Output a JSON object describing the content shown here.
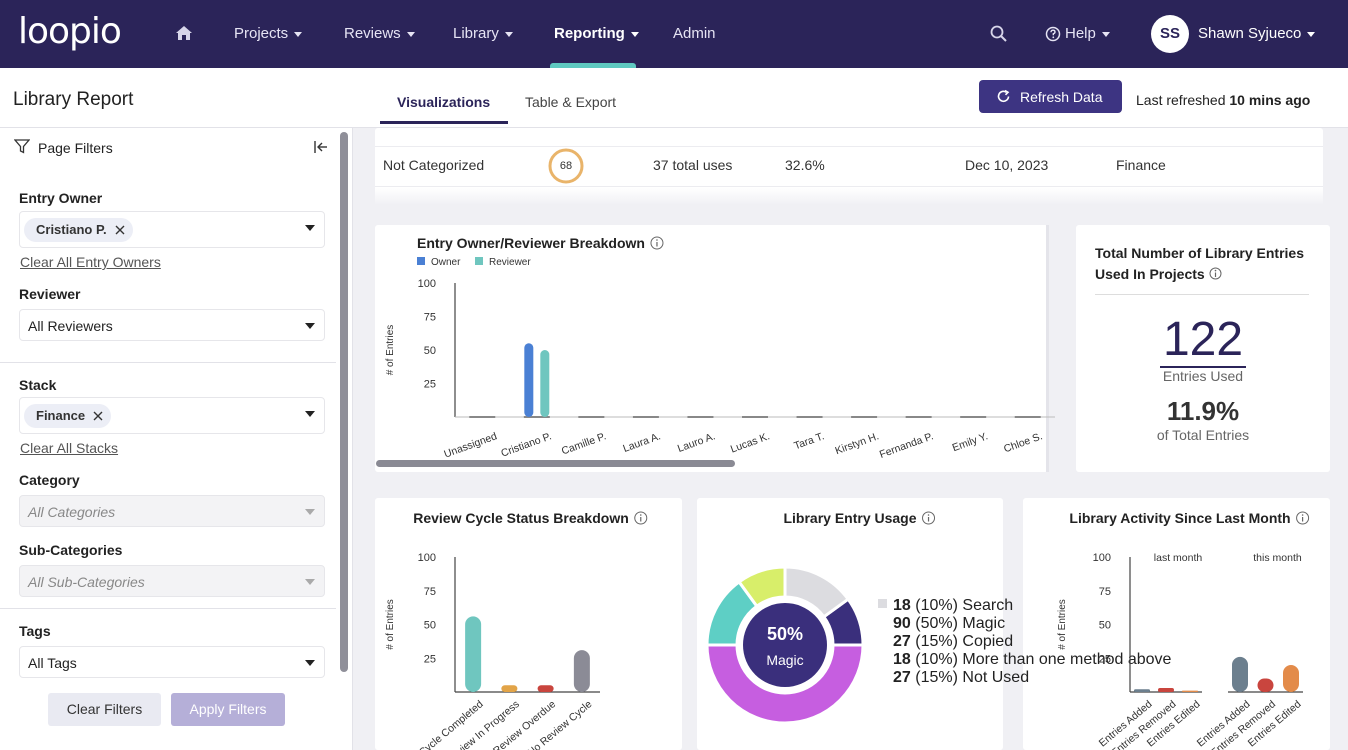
{
  "nav": {
    "logo": "loopio",
    "items": [
      "Projects",
      "Reviews",
      "Library",
      "Reporting",
      "Admin"
    ],
    "help": "Help",
    "avatar": "SS",
    "user": "Shawn Syjueco"
  },
  "header": {
    "title": "Library Report",
    "tabs": [
      "Visualizations",
      "Table & Export"
    ],
    "refresh_button": "Refresh Data",
    "last_refreshed": "Last refreshed",
    "last_refreshed_time": "10 mins ago"
  },
  "sidebar": {
    "title": "Page Filters",
    "filters": [
      {
        "label": "Entry Owner",
        "chip": "Cristiano P.",
        "clear": "Clear All Entry Owners"
      },
      {
        "label": "Reviewer",
        "select": "All Reviewers"
      },
      {
        "label": "Stack",
        "chip": "Finance",
        "clear": "Clear All Stacks"
      },
      {
        "label": "Category",
        "select": "All Categories"
      },
      {
        "label": "Sub-Categories",
        "select": "All Sub-Categories"
      },
      {
        "label": "Tags",
        "select": "All Tags"
      }
    ],
    "buttons": [
      "Clear Filters",
      "Apply Filters"
    ]
  },
  "table": {
    "row": [
      "Not Categorized",
      68,
      "37 total uses",
      "32.6%",
      "Dec 10, 2023",
      "Finance"
    ]
  },
  "summary": {
    "title": "Total Number of Library Entries Used In Projects",
    "count": 122,
    "count_caption": "Entries Used",
    "share": "11.9%",
    "share_caption": "of Total Entries"
  },
  "chart_data": [
    {
      "type": "grouped_bar",
      "title": "Entry Owner/Reviewer Breakdown",
      "y_label": "# of Entries",
      "categories": [
        "Unassigned",
        "Cristiano P.",
        "Camille P.",
        "Laura A.",
        "Lauro A.",
        "Lucas K.",
        "Tara T.",
        "Kirstyn H.",
        "Fernanda P.",
        "Emily Y.",
        "Chloe S."
      ],
      "series": [
        {
          "name": "Owner",
          "color": "#4a80d4",
          "values": [
            0,
            55,
            0,
            0,
            0,
            0,
            0,
            0,
            0,
            0,
            0
          ]
        },
        {
          "name": "Reviewer",
          "color": "#6fc6bf",
          "values": [
            0,
            50,
            0,
            0,
            0,
            0,
            0,
            0,
            0,
            0,
            0
          ]
        }
      ],
      "ylim": [
        0,
        100
      ],
      "yticks": [
        25,
        50,
        75,
        100
      ]
    },
    {
      "type": "bar",
      "title": "Review Cycle Status Breakdown",
      "y_label": "# of Entries",
      "categories": [
        "Cycle Completed",
        "Review In Progress",
        "Review Overdue",
        "No Review Cycle"
      ],
      "values": [
        56,
        5,
        5,
        31
      ],
      "colors": [
        "#6fc6bf",
        "#e2a448",
        "#c9453e",
        "#8b8b96"
      ],
      "ylim": [
        0,
        100
      ],
      "yticks": [
        25,
        50,
        75,
        100
      ]
    },
    {
      "type": "donut",
      "title": "Library Entry Usage",
      "categories": [
        "Search",
        "Magic",
        "Copied",
        "More than one method above",
        "Not Used"
      ],
      "values": [
        18,
        90,
        27,
        18,
        27
      ],
      "share_labels": [
        "(10%)",
        "(50%)",
        "(15%)",
        "(10%)",
        "(15%)"
      ],
      "colors": [
        "#3a2f7c",
        "#c65ee0",
        "#5ecfc5",
        "#d8ee6a",
        "#dcdce0"
      ],
      "center": {
        "value": 50,
        "label": "50%"
      },
      "center_caption": "Magic"
    },
    {
      "type": "grouped_panels",
      "title": "Library Activity Since Last Month",
      "y_label": "# of Entries",
      "categories": [
        "Entries Added",
        "Entries Removed",
        "Entries Edited"
      ],
      "colors": [
        "#6c7f8e",
        "#c9453e",
        "#e38b4a"
      ],
      "series": [
        {
          "name": "last month",
          "values": [
            2,
            3,
            1
          ]
        },
        {
          "name": "this month",
          "values": [
            26,
            10,
            20
          ]
        }
      ],
      "ylim": [
        0,
        100
      ],
      "yticks": [
        25,
        50,
        75,
        100
      ]
    }
  ]
}
